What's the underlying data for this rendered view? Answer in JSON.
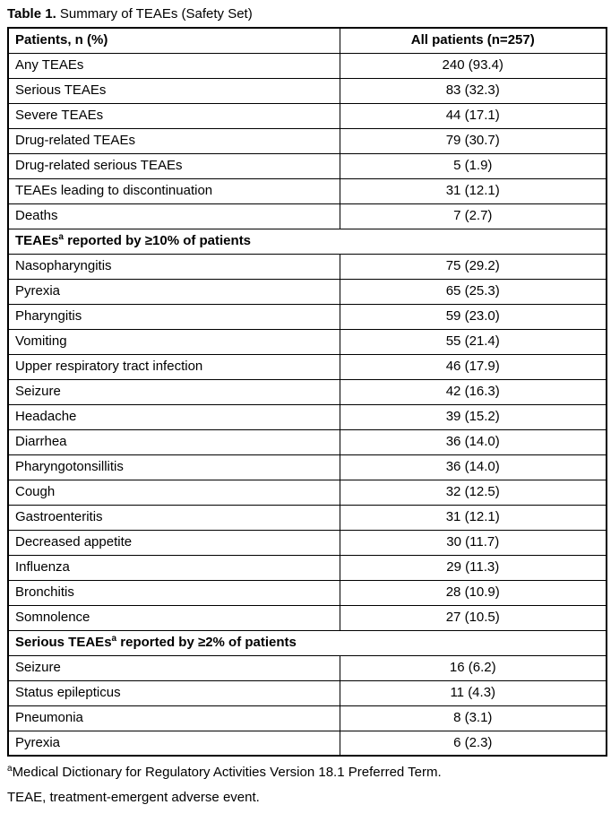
{
  "title": {
    "bold": "Table 1.",
    "rest": " Summary of TEAEs (Safety Set)"
  },
  "table": {
    "header": {
      "patients": "Patients, n (%)",
      "all_patients": "All patients (n=257)"
    },
    "sections": [
      {
        "header": null,
        "rows": [
          [
            "Any TEAEs",
            "240 (93.4)"
          ],
          [
            "Serious TEAEs",
            "83 (32.3)"
          ],
          [
            "Severe TEAEs",
            "44 (17.1)"
          ],
          [
            "Drug-related TEAEs",
            "79 (30.7)"
          ],
          [
            "Drug-related serious TEAEs",
            "5 (1.9)"
          ],
          [
            "TEAEs leading to discontinuation",
            "31 (12.1)"
          ],
          [
            "Deaths",
            "7 (2.7)"
          ]
        ]
      },
      {
        "header": {
          "pre": "TEAEs",
          "sup": "a",
          "post": " reported by ≥10% of patients"
        },
        "rows": [
          [
            "Nasopharyngitis",
            "75 (29.2)"
          ],
          [
            "Pyrexia",
            "65 (25.3)"
          ],
          [
            "Pharyngitis",
            "59 (23.0)"
          ],
          [
            "Vomiting",
            "55 (21.4)"
          ],
          [
            "Upper respiratory tract infection",
            "46 (17.9)"
          ],
          [
            "Seizure",
            "42 (16.3)"
          ],
          [
            "Headache",
            "39 (15.2)"
          ],
          [
            "Diarrhea",
            "36 (14.0)"
          ],
          [
            "Pharyngotonsillitis",
            "36 (14.0)"
          ],
          [
            "Cough",
            "32 (12.5)"
          ],
          [
            "Gastroenteritis",
            "31 (12.1)"
          ],
          [
            "Decreased appetite",
            "30 (11.7)"
          ],
          [
            "Influenza",
            "29 (11.3)"
          ],
          [
            "Bronchitis",
            "28 (10.9)"
          ],
          [
            "Somnolence",
            "27 (10.5)"
          ]
        ]
      },
      {
        "header": {
          "pre": "Serious TEAEs",
          "sup": "a",
          "post": " reported by ≥2% of patients"
        },
        "rows": [
          [
            "Seizure",
            "16 (6.2)"
          ],
          [
            "Status epilepticus",
            "11 (4.3)"
          ],
          [
            "Pneumonia",
            "8 (3.1)"
          ],
          [
            "Pyrexia",
            "6 (2.3)"
          ]
        ]
      }
    ]
  },
  "footnotes": [
    {
      "sup": "a",
      "text": "Medical Dictionary for Regulatory Activities Version 18.1 Preferred Term."
    },
    {
      "sup": "",
      "text": "TEAE, treatment-emergent adverse event."
    }
  ],
  "colors": {
    "border": "#000000",
    "text": "#000000",
    "background": "#ffffff"
  }
}
